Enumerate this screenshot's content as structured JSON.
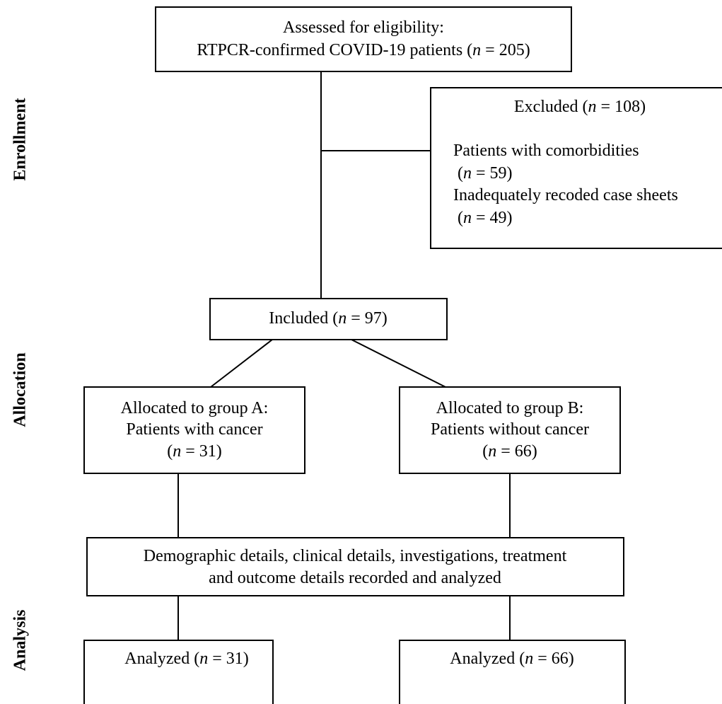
{
  "side_labels": [
    "Enrollment",
    "Allocation",
    "Analysis"
  ],
  "nodes": [
    {
      "lines": [
        [
          "Assessed for eligibility:"
        ],
        [
          "RTPCR-confirmed COVID-19 patients (",
          "n",
          " = 205)"
        ]
      ]
    },
    {
      "lines": [
        [
          "Excluded (",
          "n",
          " = 108)"
        ],
        [
          "Patients with comorbidities"
        ],
        [
          " (",
          "n",
          " = 59)"
        ],
        [
          "Inadequately recoded case sheets"
        ],
        [
          " (",
          "n",
          " = 49)"
        ]
      ]
    },
    {
      "lines": [
        [
          "Included (",
          "n",
          " = 97)"
        ]
      ]
    },
    {
      "lines": [
        [
          "Allocated to group A:"
        ],
        [
          "Patients with cancer"
        ],
        [
          "(",
          "n",
          " = 31)"
        ]
      ]
    },
    {
      "lines": [
        [
          "Allocated to group B:"
        ],
        [
          "Patients without cancer"
        ],
        [
          "(",
          "n",
          " = 66)"
        ]
      ]
    },
    {
      "lines": [
        [
          "Demographic details, clinical details, investigations, treatment"
        ],
        [
          "and outcome details recorded and analyzed"
        ]
      ]
    },
    {
      "lines": [
        [
          "Analyzed (",
          "n",
          " = 31)"
        ]
      ]
    },
    {
      "lines": [
        [
          "Analyzed (",
          "n",
          " = 66)"
        ]
      ]
    }
  ]
}
